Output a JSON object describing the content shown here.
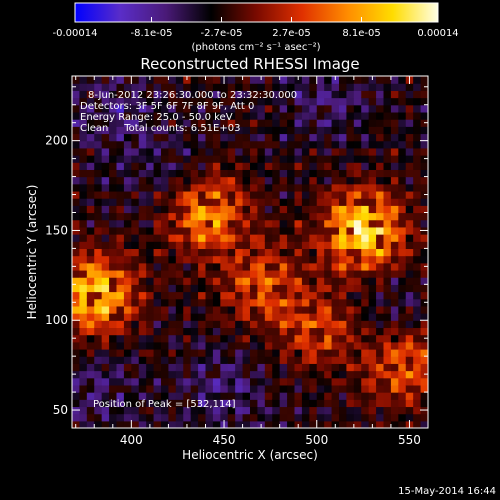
{
  "chart_data": {
    "type": "heatmap",
    "title": "Reconstructed RHESSI Image",
    "xlabel": "Heliocentric X (arcsec)",
    "ylabel": "Heliocentric Y (arcsec)",
    "xlim": [
      368,
      560
    ],
    "ylim": [
      40,
      236
    ],
    "x_ticks": [
      "400",
      "450",
      "500",
      "550"
    ],
    "x_tick_values": [
      400,
      450,
      500,
      550
    ],
    "y_ticks": [
      "50",
      "100",
      "150",
      "200"
    ],
    "y_tick_values": [
      50,
      100,
      150,
      200
    ],
    "colorbar": {
      "min": -0.00014,
      "max": 0.00014,
      "tick_labels": [
        "-0.00014",
        "-8.1e-05",
        "-2.7e-05",
        "2.7e-05",
        "8.1e-05",
        "0.00014"
      ],
      "tick_values": [
        -0.00014,
        -8.1e-05,
        -2.7e-05,
        2.7e-05,
        8.1e-05,
        0.00014
      ],
      "units_label": "(photons cm⁻² s⁻¹ asec⁻²)",
      "colors": [
        "#0000ff",
        "#5a2dc8",
        "#4a1a78",
        "#000000",
        "#7a0a00",
        "#e03000",
        "#ff8c00",
        "#ffdc00",
        "#ffffe6"
      ]
    },
    "info_lines": [
      "8-Jun-2012 23:26:30.000 to 23:32:30.000",
      "Detectors: 3F 5F 6F 7F 8F 9F, Att 0",
      "Energy Range: 25.0 - 50.0 keV",
      "Clean     Total counts: 6.51E+03"
    ],
    "peak_label": "Position of Peak = [532,114]",
    "peak": [
      532,
      114
    ],
    "bright_regions": [
      {
        "x": 525,
        "y": 150,
        "intensity": 1.0
      },
      {
        "x": 380,
        "y": 115,
        "intensity": 0.9
      },
      {
        "x": 440,
        "y": 160,
        "intensity": 0.75
      },
      {
        "x": 548,
        "y": 75,
        "intensity": 0.6
      },
      {
        "x": 470,
        "y": 120,
        "intensity": 0.5
      },
      {
        "x": 500,
        "y": 95,
        "intensity": 0.45
      }
    ],
    "dark_regions": [
      {
        "x": 390,
        "y": 215,
        "intensity": 0.6
      },
      {
        "x": 505,
        "y": 225,
        "intensity": 0.55
      },
      {
        "x": 450,
        "y": 60,
        "intensity": 0.6
      },
      {
        "x": 380,
        "y": 60,
        "intensity": 0.5
      },
      {
        "x": 420,
        "y": 180,
        "intensity": 0.45
      },
      {
        "x": 545,
        "y": 105,
        "intensity": 0.4
      }
    ]
  },
  "footer_date": "15-May-2014 16:44"
}
